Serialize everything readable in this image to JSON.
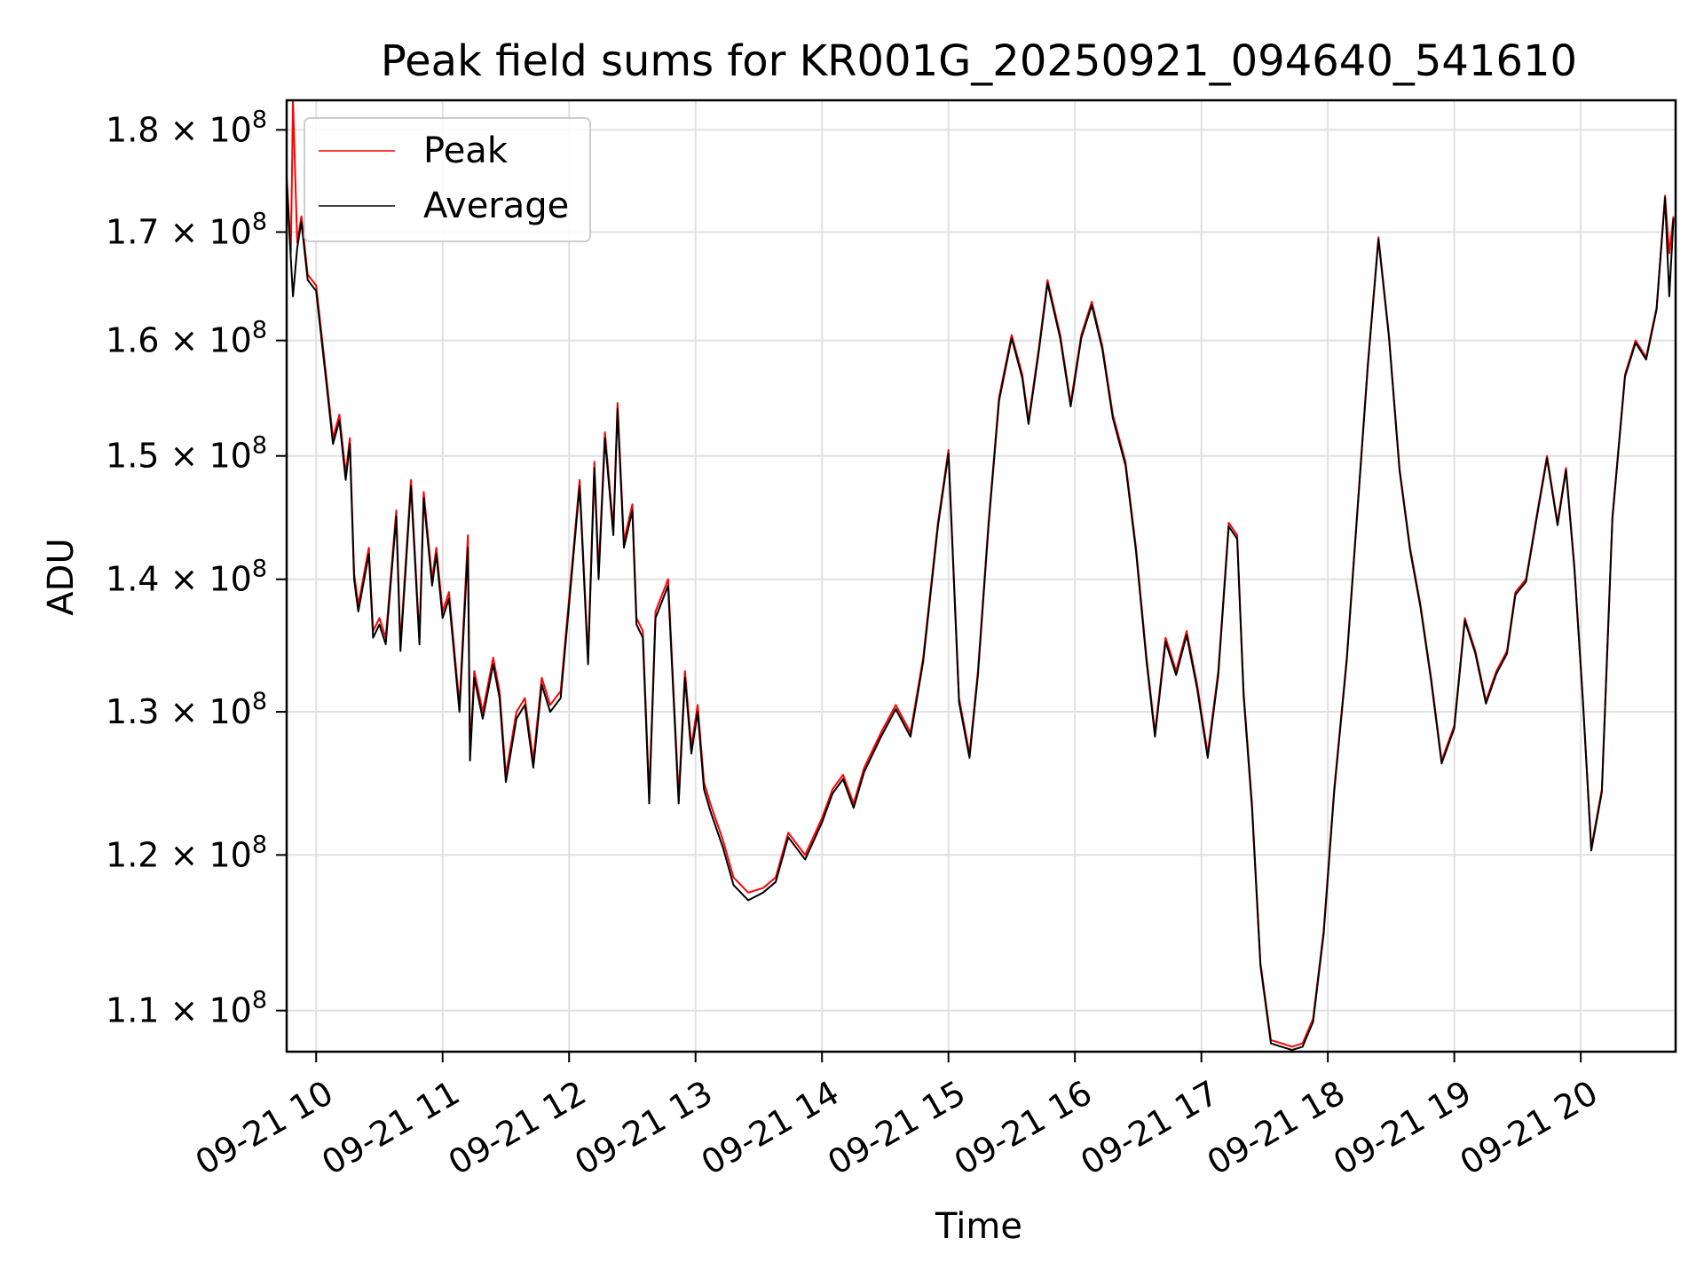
{
  "chart_data": {
    "type": "line",
    "title": "Peak field sums for KR001G_20250921_094640_541610",
    "xlabel": "Time",
    "ylabel": "ADU",
    "yscale": "log",
    "grid": true,
    "legend_position": "upper-left",
    "xlim": [
      "2025-09-21 09:46",
      "2025-09-21 20:45"
    ],
    "ylim": [
      107500000,
      183000000
    ],
    "x_ticks": [
      {
        "value": "2025-09-21 10:00",
        "label": "09-21 10"
      },
      {
        "value": "2025-09-21 11:00",
        "label": "09-21 11"
      },
      {
        "value": "2025-09-21 12:00",
        "label": "09-21 12"
      },
      {
        "value": "2025-09-21 13:00",
        "label": "09-21 13"
      },
      {
        "value": "2025-09-21 14:00",
        "label": "09-21 14"
      },
      {
        "value": "2025-09-21 15:00",
        "label": "09-21 15"
      },
      {
        "value": "2025-09-21 16:00",
        "label": "09-21 16"
      },
      {
        "value": "2025-09-21 17:00",
        "label": "09-21 17"
      },
      {
        "value": "2025-09-21 18:00",
        "label": "09-21 18"
      },
      {
        "value": "2025-09-21 19:00",
        "label": "09-21 19"
      },
      {
        "value": "2025-09-21 20:00",
        "label": "09-21 20"
      }
    ],
    "y_ticks": [
      {
        "value": 110000000,
        "mantissa": "1.1",
        "base": "10",
        "exp": "8"
      },
      {
        "value": 120000000,
        "mantissa": "1.2",
        "base": "10",
        "exp": "8"
      },
      {
        "value": 130000000,
        "mantissa": "1.3",
        "base": "10",
        "exp": "8"
      },
      {
        "value": 140000000,
        "mantissa": "1.4",
        "base": "10",
        "exp": "8"
      },
      {
        "value": 150000000,
        "mantissa": "1.5",
        "base": "10",
        "exp": "8"
      },
      {
        "value": 160000000,
        "mantissa": "1.6",
        "base": "10",
        "exp": "8"
      },
      {
        "value": 170000000,
        "mantissa": "1.7",
        "base": "10",
        "exp": "8"
      },
      {
        "value": 180000000,
        "mantissa": "1.8",
        "base": "10",
        "exp": "8"
      }
    ],
    "series": [
      {
        "name": "Peak",
        "color": "#ff0000",
        "x": [
          "2025-09-21 09:46",
          "2025-09-21 09:48",
          "2025-09-21 09:49",
          "2025-09-21 09:51",
          "2025-09-21 09:53",
          "2025-09-21 09:56",
          "2025-09-21 10:00",
          "2025-09-21 10:05",
          "2025-09-21 10:08",
          "2025-09-21 10:11",
          "2025-09-21 10:14",
          "2025-09-21 10:16",
          "2025-09-21 10:18",
          "2025-09-21 10:20",
          "2025-09-21 10:25",
          "2025-09-21 10:27",
          "2025-09-21 10:30",
          "2025-09-21 10:33",
          "2025-09-21 10:38",
          "2025-09-21 10:40",
          "2025-09-21 10:45",
          "2025-09-21 10:49",
          "2025-09-21 10:51",
          "2025-09-21 10:55",
          "2025-09-21 10:57",
          "2025-09-21 11:00",
          "2025-09-21 11:03",
          "2025-09-21 11:08",
          "2025-09-21 11:12",
          "2025-09-21 11:13",
          "2025-09-21 11:15",
          "2025-09-21 11:19",
          "2025-09-21 11:24",
          "2025-09-21 11:27",
          "2025-09-21 11:30",
          "2025-09-21 11:35",
          "2025-09-21 11:39",
          "2025-09-21 11:43",
          "2025-09-21 11:47",
          "2025-09-21 11:51",
          "2025-09-21 11:56",
          "2025-09-21 12:00",
          "2025-09-21 12:05",
          "2025-09-21 12:09",
          "2025-09-21 12:12",
          "2025-09-21 12:14",
          "2025-09-21 12:17",
          "2025-09-21 12:21",
          "2025-09-21 12:23",
          "2025-09-21 12:26",
          "2025-09-21 12:30",
          "2025-09-21 12:32",
          "2025-09-21 12:35",
          "2025-09-21 12:38",
          "2025-09-21 12:41",
          "2025-09-21 12:47",
          "2025-09-21 12:52",
          "2025-09-21 12:55",
          "2025-09-21 12:58",
          "2025-09-21 13:01",
          "2025-09-21 13:04",
          "2025-09-21 13:07",
          "2025-09-21 13:13",
          "2025-09-21 13:18",
          "2025-09-21 13:25",
          "2025-09-21 13:32",
          "2025-09-21 13:38",
          "2025-09-21 13:44",
          "2025-09-21 13:52",
          "2025-09-21 14:00",
          "2025-09-21 14:05",
          "2025-09-21 14:10",
          "2025-09-21 14:15",
          "2025-09-21 14:20",
          "2025-09-21 14:28",
          "2025-09-21 14:35",
          "2025-09-21 14:42",
          "2025-09-21 14:48",
          "2025-09-21 14:55",
          "2025-09-21 15:00",
          "2025-09-21 15:05",
          "2025-09-21 15:10",
          "2025-09-21 15:14",
          "2025-09-21 15:19",
          "2025-09-21 15:24",
          "2025-09-21 15:30",
          "2025-09-21 15:35",
          "2025-09-21 15:38",
          "2025-09-21 15:43",
          "2025-09-21 15:47",
          "2025-09-21 15:53",
          "2025-09-21 15:58",
          "2025-09-21 16:03",
          "2025-09-21 16:08",
          "2025-09-21 16:13",
          "2025-09-21 16:18",
          "2025-09-21 16:24",
          "2025-09-21 16:29",
          "2025-09-21 16:34",
          "2025-09-21 16:38",
          "2025-09-21 16:43",
          "2025-09-21 16:48",
          "2025-09-21 16:53",
          "2025-09-21 16:58",
          "2025-09-21 17:03",
          "2025-09-21 17:08",
          "2025-09-21 17:13",
          "2025-09-21 17:17",
          "2025-09-21 17:20",
          "2025-09-21 17:24",
          "2025-09-21 17:28",
          "2025-09-21 17:33",
          "2025-09-21 17:38",
          "2025-09-21 17:43",
          "2025-09-21 17:48",
          "2025-09-21 17:53",
          "2025-09-21 17:58",
          "2025-09-21 18:03",
          "2025-09-21 18:09",
          "2025-09-21 18:14",
          "2025-09-21 18:19",
          "2025-09-21 18:24",
          "2025-09-21 18:29",
          "2025-09-21 18:34",
          "2025-09-21 18:39",
          "2025-09-21 18:44",
          "2025-09-21 18:49",
          "2025-09-21 18:54",
          "2025-09-21 19:00",
          "2025-09-21 19:05",
          "2025-09-21 19:10",
          "2025-09-21 19:15",
          "2025-09-21 19:20",
          "2025-09-21 19:25",
          "2025-09-21 19:29",
          "2025-09-21 19:34",
          "2025-09-21 19:39",
          "2025-09-21 19:44",
          "2025-09-21 19:49",
          "2025-09-21 19:53",
          "2025-09-21 19:57",
          "2025-09-21 20:01",
          "2025-09-21 20:05",
          "2025-09-21 20:10",
          "2025-09-21 20:15",
          "2025-09-21 20:21",
          "2025-09-21 20:26",
          "2025-09-21 20:31",
          "2025-09-21 20:36",
          "2025-09-21 20:40",
          "2025-09-21 20:42",
          "2025-09-21 20:44"
        ],
        "values": [
          175500000,
          168000000,
          183000000,
          169000000,
          171500000,
          166000000,
          165000000,
          156500000,
          151500000,
          153500000,
          148500000,
          151500000,
          140500000,
          138000000,
          142500000,
          136000000,
          137000000,
          135500000,
          145500000,
          135000000,
          148000000,
          135500000,
          147000000,
          140000000,
          142500000,
          137500000,
          139000000,
          130500000,
          143500000,
          127000000,
          133000000,
          130000000,
          134000000,
          131500000,
          125500000,
          130000000,
          131000000,
          126500000,
          132500000,
          130500000,
          131500000,
          138500000,
          148000000,
          134000000,
          149500000,
          140500000,
          152000000,
          144000000,
          154500000,
          143000000,
          146000000,
          137000000,
          136000000,
          124000000,
          137500000,
          140000000,
          124000000,
          133000000,
          127500000,
          130500000,
          125000000,
          123500000,
          121000000,
          118500000,
          117500000,
          117800000,
          118500000,
          121500000,
          120000000,
          122500000,
          124500000,
          125500000,
          123500000,
          126000000,
          128500000,
          130500000,
          128500000,
          134000000,
          144500000,
          150500000,
          131000000,
          127000000,
          133000000,
          144500000,
          155000000,
          160500000,
          157000000,
          153000000,
          159500000,
          165500000,
          160500000,
          154500000,
          160500000,
          163500000,
          159500000,
          153500000,
          149500000,
          142500000,
          134000000,
          128500000,
          135500000,
          133000000,
          136000000,
          132000000,
          127000000,
          133000000,
          144500000,
          143500000,
          131500000,
          123500000,
          113000000,
          108200000,
          108000000,
          107800000,
          108000000,
          109500000,
          115000000,
          124500000,
          134000000,
          145500000,
          158000000,
          169500000,
          160500000,
          149000000,
          142500000,
          138000000,
          132500000,
          126500000,
          129000000,
          137000000,
          134500000,
          130800000,
          133000000,
          134500000,
          139000000,
          140000000,
          145000000,
          150000000,
          144500000,
          149000000,
          141000000,
          131000000,
          120500000,
          124500000,
          145000000,
          157000000,
          160000000,
          158500000,
          163000000,
          173500000,
          168000000,
          171500000
        ]
      },
      {
        "name": "Average",
        "color": "#000000",
        "x": [
          "2025-09-21 09:46",
          "2025-09-21 09:48",
          "2025-09-21 09:49",
          "2025-09-21 09:51",
          "2025-09-21 09:53",
          "2025-09-21 09:56",
          "2025-09-21 10:00",
          "2025-09-21 10:05",
          "2025-09-21 10:08",
          "2025-09-21 10:11",
          "2025-09-21 10:14",
          "2025-09-21 10:16",
          "2025-09-21 10:18",
          "2025-09-21 10:20",
          "2025-09-21 10:25",
          "2025-09-21 10:27",
          "2025-09-21 10:30",
          "2025-09-21 10:33",
          "2025-09-21 10:38",
          "2025-09-21 10:40",
          "2025-09-21 10:45",
          "2025-09-21 10:49",
          "2025-09-21 10:51",
          "2025-09-21 10:55",
          "2025-09-21 10:57",
          "2025-09-21 11:00",
          "2025-09-21 11:03",
          "2025-09-21 11:08",
          "2025-09-21 11:12",
          "2025-09-21 11:13",
          "2025-09-21 11:15",
          "2025-09-21 11:19",
          "2025-09-21 11:24",
          "2025-09-21 11:27",
          "2025-09-21 11:30",
          "2025-09-21 11:35",
          "2025-09-21 11:39",
          "2025-09-21 11:43",
          "2025-09-21 11:47",
          "2025-09-21 11:51",
          "2025-09-21 11:56",
          "2025-09-21 12:00",
          "2025-09-21 12:05",
          "2025-09-21 12:09",
          "2025-09-21 12:12",
          "2025-09-21 12:14",
          "2025-09-21 12:17",
          "2025-09-21 12:21",
          "2025-09-21 12:23",
          "2025-09-21 12:26",
          "2025-09-21 12:30",
          "2025-09-21 12:32",
          "2025-09-21 12:35",
          "2025-09-21 12:38",
          "2025-09-21 12:41",
          "2025-09-21 12:47",
          "2025-09-21 12:52",
          "2025-09-21 12:55",
          "2025-09-21 12:58",
          "2025-09-21 13:01",
          "2025-09-21 13:04",
          "2025-09-21 13:07",
          "2025-09-21 13:13",
          "2025-09-21 13:18",
          "2025-09-21 13:25",
          "2025-09-21 13:32",
          "2025-09-21 13:38",
          "2025-09-21 13:44",
          "2025-09-21 13:52",
          "2025-09-21 14:00",
          "2025-09-21 14:05",
          "2025-09-21 14:10",
          "2025-09-21 14:15",
          "2025-09-21 14:20",
          "2025-09-21 14:28",
          "2025-09-21 14:35",
          "2025-09-21 14:42",
          "2025-09-21 14:48",
          "2025-09-21 14:55",
          "2025-09-21 15:00",
          "2025-09-21 15:05",
          "2025-09-21 15:10",
          "2025-09-21 15:14",
          "2025-09-21 15:19",
          "2025-09-21 15:24",
          "2025-09-21 15:30",
          "2025-09-21 15:35",
          "2025-09-21 15:38",
          "2025-09-21 15:43",
          "2025-09-21 15:47",
          "2025-09-21 15:53",
          "2025-09-21 15:58",
          "2025-09-21 16:03",
          "2025-09-21 16:08",
          "2025-09-21 16:13",
          "2025-09-21 16:18",
          "2025-09-21 16:24",
          "2025-09-21 16:29",
          "2025-09-21 16:34",
          "2025-09-21 16:38",
          "2025-09-21 16:43",
          "2025-09-21 16:48",
          "2025-09-21 16:53",
          "2025-09-21 16:58",
          "2025-09-21 17:03",
          "2025-09-21 17:08",
          "2025-09-21 17:13",
          "2025-09-21 17:17",
          "2025-09-21 17:20",
          "2025-09-21 17:24",
          "2025-09-21 17:28",
          "2025-09-21 17:33",
          "2025-09-21 17:38",
          "2025-09-21 17:43",
          "2025-09-21 17:48",
          "2025-09-21 17:53",
          "2025-09-21 17:58",
          "2025-09-21 18:03",
          "2025-09-21 18:09",
          "2025-09-21 18:14",
          "2025-09-21 18:19",
          "2025-09-21 18:24",
          "2025-09-21 18:29",
          "2025-09-21 18:34",
          "2025-09-21 18:39",
          "2025-09-21 18:44",
          "2025-09-21 18:49",
          "2025-09-21 18:54",
          "2025-09-21 19:00",
          "2025-09-21 19:05",
          "2025-09-21 19:10",
          "2025-09-21 19:15",
          "2025-09-21 19:20",
          "2025-09-21 19:25",
          "2025-09-21 19:29",
          "2025-09-21 19:34",
          "2025-09-21 19:39",
          "2025-09-21 19:44",
          "2025-09-21 19:49",
          "2025-09-21 19:53",
          "2025-09-21 19:57",
          "2025-09-21 20:01",
          "2025-09-21 20:05",
          "2025-09-21 20:10",
          "2025-09-21 20:15",
          "2025-09-21 20:21",
          "2025-09-21 20:26",
          "2025-09-21 20:31",
          "2025-09-21 20:36",
          "2025-09-21 20:40",
          "2025-09-21 20:42",
          "2025-09-21 20:44"
        ],
        "values": [
          175000000,
          167500000,
          164000000,
          168500000,
          171000000,
          165500000,
          164500000,
          156000000,
          151000000,
          153000000,
          148000000,
          151000000,
          140000000,
          137500000,
          142000000,
          135500000,
          136500000,
          135000000,
          145000000,
          134500000,
          147500000,
          135000000,
          146500000,
          139500000,
          142000000,
          137000000,
          138500000,
          130000000,
          142500000,
          126500000,
          132500000,
          129500000,
          133500000,
          131000000,
          125000000,
          129500000,
          130500000,
          126000000,
          132000000,
          130000000,
          131000000,
          138000000,
          147500000,
          133500000,
          149000000,
          140000000,
          151500000,
          143500000,
          154000000,
          142500000,
          145500000,
          136500000,
          135500000,
          123500000,
          137000000,
          139500000,
          123500000,
          132500000,
          127000000,
          130000000,
          124500000,
          123000000,
          120500000,
          118000000,
          117000000,
          117500000,
          118200000,
          121200000,
          119700000,
          122200000,
          124200000,
          125200000,
          123200000,
          125700000,
          128200000,
          130200000,
          128200000,
          133700000,
          144200000,
          150200000,
          130700000,
          126700000,
          132700000,
          144200000,
          154700000,
          160200000,
          156700000,
          152700000,
          159200000,
          165200000,
          160200000,
          154200000,
          160200000,
          163200000,
          159200000,
          153200000,
          149200000,
          142200000,
          133700000,
          128200000,
          135200000,
          132700000,
          135700000,
          131700000,
          126700000,
          132700000,
          144200000,
          143200000,
          131200000,
          123200000,
          112800000,
          108000000,
          107800000,
          107600000,
          107800000,
          109300000,
          114800000,
          124300000,
          133800000,
          145300000,
          157800000,
          169300000,
          160300000,
          148800000,
          142300000,
          137800000,
          132300000,
          126300000,
          128800000,
          136800000,
          134300000,
          130600000,
          132800000,
          134300000,
          138800000,
          139800000,
          144800000,
          149800000,
          144300000,
          148800000,
          140800000,
          130800000,
          120300000,
          124300000,
          144800000,
          156800000,
          159800000,
          158300000,
          162800000,
          173300000,
          164000000,
          171300000
        ]
      }
    ]
  }
}
